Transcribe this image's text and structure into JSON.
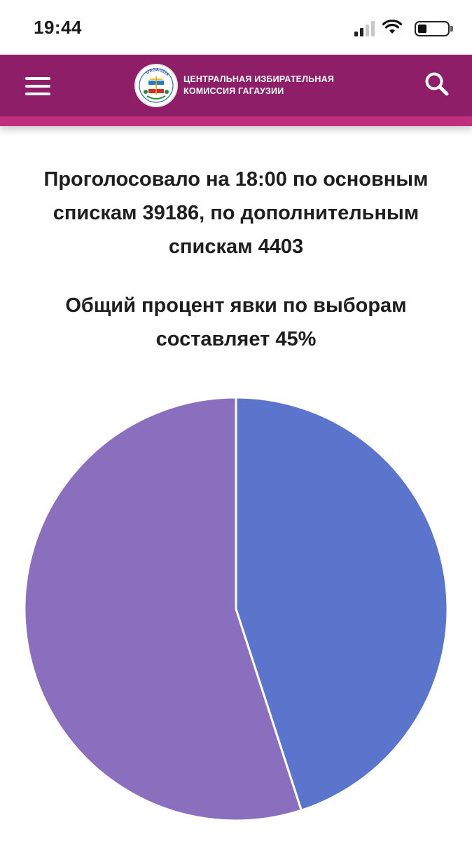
{
  "status_bar": {
    "time": "19:44"
  },
  "header": {
    "logo_line1": "ЦЕНТРАЛЬНАЯ ИЗБИРАТЕЛЬНАЯ",
    "logo_line2": "КОМИССИЯ ГАГАУЗИИ",
    "logo_emblem_text": "GAGAUZIA",
    "brand_color": "#8e1e67",
    "stripe_color": "#c02f7e",
    "menu_icon": "hamburger-icon",
    "search_icon": "search-icon"
  },
  "main": {
    "headline": "Проголосовало на 18:00 по основным спискам 39186, по дополнительным спискам 4403",
    "turnout_text": "Общий процент явки по выборам составляет 45%"
  },
  "chart_data": {
    "type": "pie",
    "slices": [
      {
        "value": 45,
        "color": "#5b74cc"
      },
      {
        "value": 55,
        "color": "#8a6fbf"
      }
    ]
  }
}
